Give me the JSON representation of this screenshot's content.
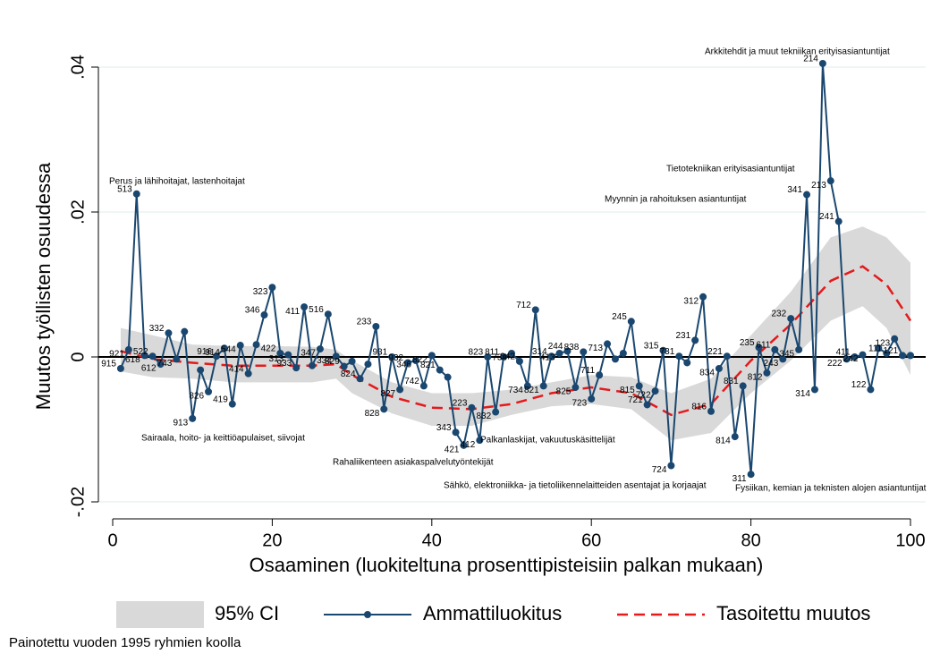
{
  "chart_data": {
    "type": "line",
    "xlabel": "Osaaminen (luokiteltuna prosenttipisteisiin palkan mukaan)",
    "ylabel": "Muutos työllisten osuudessa",
    "footnote": "Painotettu vuoden 1995 ryhmien koolla",
    "xlim": [
      0,
      100
    ],
    "xticks": [
      0,
      20,
      40,
      60,
      80,
      100
    ],
    "ylim": [
      -0.02,
      0.04
    ],
    "yticks": [
      {
        "value": -0.02,
        "label": "-.02"
      },
      0,
      {
        "value": 0.02,
        "label": ".02"
      },
      {
        "value": 0.04,
        "label": ".04"
      }
    ],
    "grid": true,
    "hline": 0,
    "legend": "bottom",
    "series": [
      {
        "name": "95% CI",
        "color": "#d9d9d9",
        "x": [
          1,
          5,
          10,
          15,
          20,
          25,
          28,
          30,
          35,
          40,
          45,
          50,
          55,
          60,
          65,
          70,
          75,
          80,
          85,
          90,
          94,
          97,
          100
        ],
        "upper": [
          0.004,
          0.003,
          0.0017,
          0.0015,
          0.0015,
          0.0014,
          0.001,
          -0.0005,
          -0.0035,
          -0.005,
          -0.005,
          -0.0045,
          -0.0035,
          -0.0025,
          -0.0028,
          -0.005,
          -0.003,
          0.003,
          0.009,
          0.0165,
          0.018,
          0.0165,
          0.013
        ],
        "lower": [
          -0.002,
          -0.0028,
          -0.003,
          -0.0035,
          -0.0035,
          -0.0035,
          -0.003,
          -0.005,
          -0.0078,
          -0.0095,
          -0.0095,
          -0.008,
          -0.0068,
          -0.0065,
          -0.0072,
          -0.0115,
          -0.0105,
          -0.005,
          -0.0005,
          0.005,
          0.007,
          0.004,
          -0.0025
        ]
      },
      {
        "name": "Ammattiluokitus",
        "color": "#1a476f",
        "x": [
          1,
          2,
          3,
          4,
          5,
          6,
          7,
          8,
          9,
          10,
          11,
          12,
          13,
          14,
          15,
          16,
          17,
          18,
          19,
          20,
          21,
          22,
          23,
          24,
          25,
          26,
          27,
          28,
          29,
          30,
          31,
          32,
          33,
          34,
          35,
          36,
          37,
          38,
          39,
          40,
          41,
          42,
          43,
          44,
          45,
          46,
          47,
          48,
          49,
          50,
          51,
          52,
          53,
          54,
          55,
          56,
          57,
          58,
          59,
          60,
          61,
          62,
          63,
          64,
          65,
          66,
          67,
          68,
          69,
          70,
          71,
          72,
          73,
          74,
          75,
          76,
          77,
          78,
          79,
          80,
          81,
          82,
          83,
          84,
          85,
          86,
          87,
          88,
          89,
          90,
          91,
          92,
          93,
          94,
          95,
          96,
          97,
          98,
          99,
          100
        ],
        "values": [
          -0.0016,
          0.001,
          0.0225,
          0.0002,
          0.0001,
          -0.001,
          0.0033,
          -0.0003,
          0.0035,
          -0.0085,
          -0.0018,
          -0.0048,
          0.0001,
          0.0012,
          -0.0065,
          0.0016,
          -0.0023,
          0.0017,
          0.0058,
          0.0096,
          0.0005,
          0.0003,
          -0.0015,
          0.0069,
          -0.0012,
          0.0011,
          0.0059,
          0.0001,
          -0.0013,
          -0.0006,
          -0.003,
          -0.001,
          0.0042,
          -0.0072,
          0.0,
          -0.0045,
          -0.0008,
          -0.0005,
          -0.004,
          0.0002,
          -0.0018,
          -0.0028,
          -0.0104,
          -0.0122,
          -0.007,
          -0.0115,
          0.0,
          -0.0076,
          0.0,
          0.0005,
          -0.0006,
          -0.004,
          0.0065,
          -0.004,
          0.0001,
          0.0005,
          0.0008,
          -0.0042,
          0.0007,
          -0.0058,
          -0.0025,
          0.0018,
          -0.0003,
          0.0005,
          0.0049,
          -0.004,
          -0.0066,
          -0.0047,
          0.0009,
          -0.015,
          0.0001,
          -0.0008,
          0.0023,
          0.0083,
          -0.0075,
          -0.0016,
          0.0001,
          -0.011,
          -0.004,
          -0.0162,
          0.0013,
          -0.0022,
          0.001,
          -0.0003,
          0.0053,
          0.001,
          0.0224,
          -0.0045,
          0.0405,
          0.0243,
          0.0187,
          -0.0003,
          0.0,
          0.0003,
          -0.0045,
          0.0012,
          0.0005,
          0.0025,
          0.0002,
          0.0002
        ],
        "point_labels": [
          "915",
          "921",
          "513",
          "618",
          "522",
          "612",
          "332",
          "743",
          null,
          "913",
          null,
          "826",
          "916",
          "914",
          "419",
          "544",
          "414",
          null,
          "346",
          "323",
          "422",
          "313",
          "933",
          "411",
          null,
          "347",
          "516",
          "334",
          "829",
          null,
          "824",
          null,
          "233",
          "828",
          "931",
          "827",
          "932",
          "346",
          "742",
          "822",
          "821",
          null,
          "343",
          "421",
          "223",
          "412",
          "823",
          "832",
          "811",
          "734",
          "342",
          "734",
          "712",
          "821",
          "314",
          "413",
          "244",
          "825",
          "838",
          "723",
          "711",
          "713",
          null,
          null,
          "245",
          "815",
          "721",
          "722",
          "315",
          "724",
          "731",
          null,
          "231",
          "312",
          "816",
          "834",
          "221",
          "814",
          "831",
          "311",
          "235",
          "812",
          "611",
          "243",
          "232",
          "345",
          "341",
          "314",
          "214",
          "213",
          "241",
          "222",
          "411",
          "242",
          "122",
          null,
          "111",
          "123",
          "121",
          null
        ]
      },
      {
        "name": "Tasoitettu muutos",
        "color": "#e41a1c",
        "x": [
          1,
          5,
          10,
          15,
          20,
          25,
          28,
          30,
          35,
          40,
          45,
          50,
          55,
          60,
          65,
          70,
          75,
          80,
          85,
          90,
          94,
          97,
          100
        ],
        "values": [
          0.0008,
          -0.0003,
          -0.0008,
          -0.0012,
          -0.0012,
          -0.0012,
          -0.001,
          -0.0025,
          -0.0055,
          -0.007,
          -0.0072,
          -0.0065,
          -0.005,
          -0.0042,
          -0.005,
          -0.008,
          -0.0065,
          -0.0005,
          0.0045,
          0.0105,
          0.0125,
          0.01,
          0.005
        ]
      }
    ],
    "annotations": [
      "Perus ja lähihoitajat, lastenhoitajat",
      "Sairaala, hoito- ja keittiöapulaiset, siivojat",
      "Rahaliikenteen asiakaspalvelutyöntekijät",
      "Palkanlaskijat, vakuutuskäsittelijät",
      "Sähkö, elektroniikka- ja tietoliikennelaitteiden asentajat ja korjaajat",
      "Arkkitehdit ja muut tekniikan erityisasiantuntijat",
      "Tietotekniikan erityisasiantuntijat",
      "Myynnin ja rahoituksen asiantuntijat",
      "Fysiikan, kemian ja teknisten alojen asiantuntijat"
    ]
  }
}
